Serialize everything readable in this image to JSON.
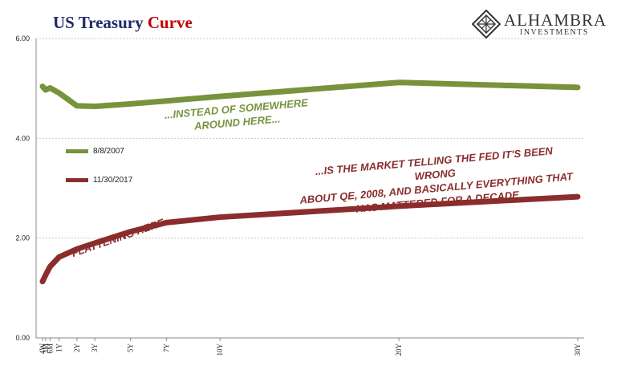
{
  "title": {
    "part1": "US Treasury",
    "part2": "Curve"
  },
  "logo": {
    "name": "ALHAMBRA",
    "sub": "INVESTMENTS",
    "icon": "diamond-lattice-logo-icon"
  },
  "colors": {
    "series1": "#77933c",
    "series2": "#8b2d2d",
    "grid": "#c8c8c8",
    "title_main": "#1f2a6b",
    "title_accent": "#c00000"
  },
  "annotations": {
    "instead": [
      "...INSTEAD OF SOMEWHERE",
      "AROUND HERE..."
    ],
    "flattening": "FLATTENING HERE...",
    "market": [
      "...IS THE MARKET TELLING THE FED IT'S BEEN WRONG",
      "ABOUT QE, 2008,  AND BASICALLY EVERYTHING THAT",
      "HAS MATTERED  FOR A DECADE"
    ]
  },
  "chart_data": {
    "type": "line",
    "x": [
      0.077,
      0.25,
      0.5,
      1,
      2,
      3,
      5,
      7,
      10,
      20,
      30
    ],
    "x_tick_labels": [
      "4W",
      "3M",
      "6M",
      "1Y",
      "2Y",
      "3Y",
      "5Y",
      "7Y",
      "10Y",
      "20Y",
      "30Y"
    ],
    "ylim": [
      0,
      6
    ],
    "y_ticks": [
      "0.00",
      "2.00",
      "4.00",
      "6.00"
    ],
    "grid": true,
    "legend_position": "left",
    "series": [
      {
        "name": "8/8/2007",
        "values": [
          5.04,
          4.97,
          5.01,
          4.91,
          4.65,
          4.64,
          4.69,
          4.75,
          4.84,
          5.12,
          5.02
        ]
      },
      {
        "name": "11/30/2017",
        "values": [
          1.13,
          1.26,
          1.43,
          1.62,
          1.78,
          1.9,
          2.13,
          2.31,
          2.42,
          2.64,
          2.83
        ]
      }
    ]
  }
}
